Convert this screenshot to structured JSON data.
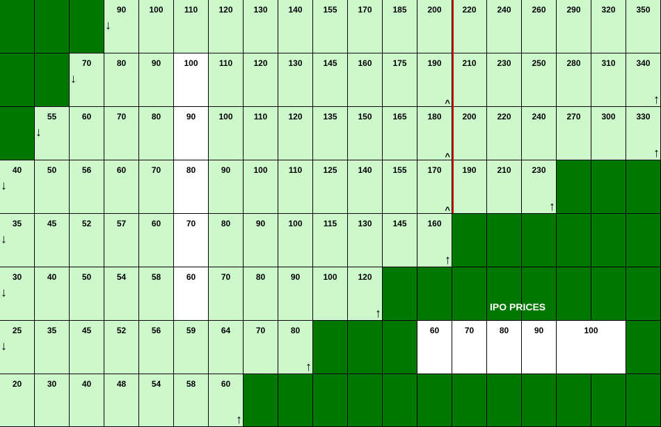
{
  "title": "IPO PRICES",
  "colors": {
    "light": "#ccf8cc",
    "dark": "#007800",
    "white": "#ffffff",
    "divider": "#e60000"
  },
  "rows": [
    [
      {
        "s": "d"
      },
      {
        "s": "d"
      },
      {
        "s": "d"
      },
      {
        "v": "90",
        "m": "down"
      },
      {
        "v": "100"
      },
      {
        "v": "110"
      },
      {
        "v": "120"
      },
      {
        "v": "130"
      },
      {
        "v": "140"
      },
      {
        "v": "155"
      },
      {
        "v": "170"
      },
      {
        "v": "185"
      },
      {
        "v": "200"
      },
      {
        "v": "220"
      },
      {
        "v": "240"
      },
      {
        "v": "260"
      },
      {
        "v": "290"
      },
      {
        "v": "320"
      },
      {
        "v": "350"
      }
    ],
    [
      {
        "s": "d"
      },
      {
        "s": "d"
      },
      {
        "v": "70",
        "m": "down"
      },
      {
        "v": "80"
      },
      {
        "v": "90"
      },
      {
        "v": "100",
        "s": "w"
      },
      {
        "v": "110"
      },
      {
        "v": "120"
      },
      {
        "v": "130"
      },
      {
        "v": "145"
      },
      {
        "v": "160"
      },
      {
        "v": "175"
      },
      {
        "v": "190",
        "m": "caret"
      },
      {
        "v": "210"
      },
      {
        "v": "230"
      },
      {
        "v": "250"
      },
      {
        "v": "280"
      },
      {
        "v": "310"
      },
      {
        "v": "340",
        "m": "up"
      }
    ],
    [
      {
        "s": "d"
      },
      {
        "v": "55",
        "m": "down"
      },
      {
        "v": "60"
      },
      {
        "v": "70"
      },
      {
        "v": "80"
      },
      {
        "v": "90",
        "s": "w"
      },
      {
        "v": "100"
      },
      {
        "v": "110"
      },
      {
        "v": "120"
      },
      {
        "v": "135"
      },
      {
        "v": "150"
      },
      {
        "v": "165"
      },
      {
        "v": "180",
        "m": "caret"
      },
      {
        "v": "200"
      },
      {
        "v": "220"
      },
      {
        "v": "240"
      },
      {
        "v": "270"
      },
      {
        "v": "300"
      },
      {
        "v": "330",
        "m": "up"
      }
    ],
    [
      {
        "v": "40",
        "m": "down"
      },
      {
        "v": "50"
      },
      {
        "v": "56"
      },
      {
        "v": "60"
      },
      {
        "v": "70"
      },
      {
        "v": "80",
        "s": "w"
      },
      {
        "v": "90"
      },
      {
        "v": "100"
      },
      {
        "v": "110"
      },
      {
        "v": "125"
      },
      {
        "v": "140"
      },
      {
        "v": "155"
      },
      {
        "v": "170",
        "m": "caret"
      },
      {
        "v": "190"
      },
      {
        "v": "210"
      },
      {
        "v": "230",
        "m": "up"
      },
      {
        "s": "d"
      },
      {
        "s": "d"
      },
      {
        "s": "d"
      }
    ],
    [
      {
        "v": "35",
        "m": "down"
      },
      {
        "v": "45"
      },
      {
        "v": "52"
      },
      {
        "v": "57"
      },
      {
        "v": "60"
      },
      {
        "v": "70",
        "s": "w"
      },
      {
        "v": "80"
      },
      {
        "v": "90"
      },
      {
        "v": "100"
      },
      {
        "v": "115"
      },
      {
        "v": "130"
      },
      {
        "v": "145"
      },
      {
        "v": "160",
        "m": "up"
      },
      {
        "s": "d"
      },
      {
        "s": "d"
      },
      {
        "s": "d"
      },
      {
        "s": "d"
      },
      {
        "s": "d"
      },
      {
        "s": "d"
      }
    ],
    [
      {
        "v": "30",
        "m": "down"
      },
      {
        "v": "40"
      },
      {
        "v": "50"
      },
      {
        "v": "54"
      },
      {
        "v": "58"
      },
      {
        "v": "60",
        "s": "w"
      },
      {
        "v": "70"
      },
      {
        "v": "80"
      },
      {
        "v": "90"
      },
      {
        "v": "100"
      },
      {
        "v": "120",
        "m": "up"
      },
      {
        "s": "d"
      },
      {
        "s": "d"
      },
      {
        "s": "d"
      },
      {
        "s": "d"
      },
      {
        "s": "d"
      },
      {
        "s": "d"
      },
      {
        "s": "d"
      },
      {
        "s": "d"
      }
    ],
    [
      {
        "v": "25",
        "m": "down"
      },
      {
        "v": "35"
      },
      {
        "v": "45"
      },
      {
        "v": "52"
      },
      {
        "v": "56"
      },
      {
        "v": "59"
      },
      {
        "v": "64"
      },
      {
        "v": "70"
      },
      {
        "v": "80",
        "m": "up"
      },
      {
        "s": "d"
      },
      {
        "s": "d"
      },
      {
        "s": "d"
      },
      {
        "v": "60",
        "s": "w"
      },
      {
        "v": "70",
        "s": "w"
      },
      {
        "v": "80",
        "s": "w"
      },
      {
        "v": "90",
        "s": "w"
      },
      {
        "v": "100",
        "s": "w",
        "span": 2
      },
      {
        "s": "d"
      }
    ],
    [
      {
        "v": "20"
      },
      {
        "v": "30"
      },
      {
        "v": "40"
      },
      {
        "v": "48"
      },
      {
        "v": "54"
      },
      {
        "v": "58"
      },
      {
        "v": "60",
        "m": "up"
      },
      {
        "s": "d"
      },
      {
        "s": "d"
      },
      {
        "s": "d"
      },
      {
        "s": "d"
      },
      {
        "s": "d"
      },
      {
        "s": "d"
      },
      {
        "s": "d"
      },
      {
        "s": "d"
      },
      {
        "s": "d"
      },
      {
        "s": "d"
      },
      {
        "s": "d"
      },
      {
        "s": "d"
      }
    ]
  ]
}
